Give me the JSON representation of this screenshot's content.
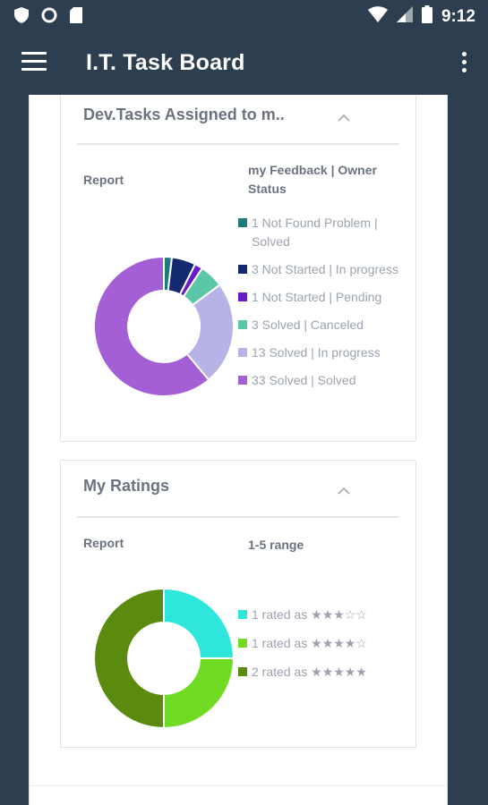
{
  "status_bar": {
    "time": "9:12",
    "icons": [
      "shield-icon",
      "circle-icon",
      "sim-card-icon",
      "wifi-icon",
      "signal-icon",
      "battery-icon"
    ]
  },
  "app_bar": {
    "title": "I.T. Task Board",
    "menu_icon": "hamburger-menu-icon",
    "overflow_icon": "more-vert-icon"
  },
  "cards": [
    {
      "title": "Dev.Tasks Assigned to m..",
      "report_label": "Report",
      "legend_title": "my Feedback | Owner Status",
      "chart_data": {
        "type": "pie",
        "donut": true,
        "categories": [
          "Not Found Problem | Solved",
          "Not Started | In progress",
          "Not Started | Pending",
          "Solved | Canceled",
          "Solved | In progress",
          "Solved | Solved"
        ],
        "values": [
          1,
          3,
          1,
          3,
          13,
          33
        ],
        "colors": [
          "#1f7a7a",
          "#142a6e",
          "#6a1bc9",
          "#5cc7a6",
          "#b7b3e6",
          "#a45fd6"
        ],
        "legend_labels": [
          "1 Not Found Problem | Solved",
          "3 Not Started | In progress",
          "1 Not Started | Pending",
          "3 Solved | Canceled",
          "13 Solved | In progress",
          "33 Solved | Solved"
        ]
      }
    },
    {
      "title": "My Ratings",
      "report_label": "Report",
      "legend_title": "1-5 range",
      "chart_data": {
        "type": "pie",
        "donut": true,
        "categories": [
          "rated as ★★★☆☆",
          "rated as ★★★★☆",
          "rated as ★★★★★"
        ],
        "values": [
          1,
          1,
          2
        ],
        "colors": [
          "#2ee6d9",
          "#6fdc23",
          "#5a8a0e"
        ],
        "legend_labels": [
          "1 rated as ★★★☆☆",
          "1 rated as ★★★★☆",
          "2 rated as ★★★★★"
        ]
      }
    }
  ]
}
